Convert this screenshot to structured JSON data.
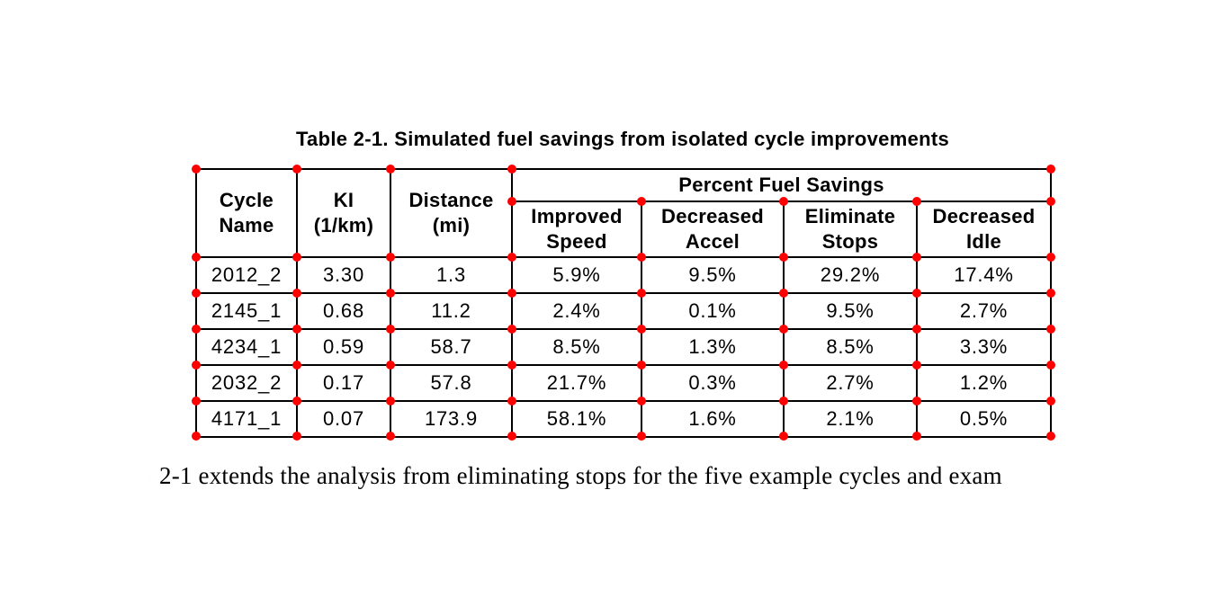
{
  "caption": "Table 2-1. Simulated fuel savings from isolated cycle improvements",
  "table": {
    "group_header": "Percent Fuel Savings",
    "headers": {
      "cycle_name": "Cycle\nName",
      "ki": "KI\n(1/km)",
      "distance": "Distance\n(mi)"
    },
    "sub_headers": [
      "Improved\nSpeed",
      "Decreased\nAccel",
      "Eliminate\nStops",
      "Decreased\nIdle"
    ],
    "rows": [
      [
        "2012_2",
        "3.30",
        "1.3",
        "5.9%",
        "9.5%",
        "29.2%",
        "17.4%"
      ],
      [
        "2145_1",
        "0.68",
        "11.2",
        "2.4%",
        "0.1%",
        "9.5%",
        "2.7%"
      ],
      [
        "4234_1",
        "0.59",
        "58.7",
        "8.5%",
        "1.3%",
        "8.5%",
        "3.3%"
      ],
      [
        "2032_2",
        "0.17",
        "57.8",
        "21.7%",
        "0.3%",
        "2.7%",
        "1.2%"
      ],
      [
        "4171_1",
        "0.07",
        "173.9",
        "58.1%",
        "1.6%",
        "2.1%",
        "0.5%"
      ]
    ]
  },
  "annotation": {
    "marker_color": "#ff0000"
  },
  "body": {
    "fragment_char": "e",
    "text": "2-1 extends the analysis from eliminating stops for the five example cycles and exam"
  }
}
